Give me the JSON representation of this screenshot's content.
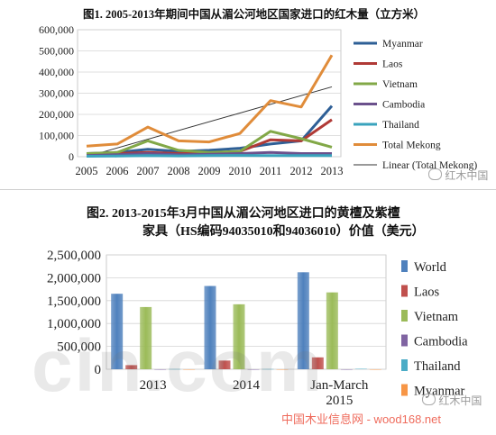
{
  "chart_data": [
    {
      "type": "line",
      "title": "图1. 2005-2013年期间中国从湄公河地区国家进口的红木量（立方米）",
      "categories": [
        "2005",
        "2006",
        "2007",
        "2008",
        "2009",
        "2010",
        "2011",
        "2012",
        "2013"
      ],
      "ylim": [
        0,
        600000
      ],
      "yticks": [
        "0",
        "100,000",
        "200,000",
        "300,000",
        "400,000",
        "500,000",
        "600,000"
      ],
      "grid": true,
      "legend_position": "right",
      "series": [
        {
          "name": "Myanmar",
          "color": "#2e5f96",
          "values": [
            15000,
            20000,
            35000,
            25000,
            30000,
            40000,
            60000,
            75000,
            240000
          ]
        },
        {
          "name": "Laos",
          "color": "#b03a36",
          "values": [
            10000,
            15000,
            20000,
            15000,
            15000,
            25000,
            80000,
            75000,
            175000
          ]
        },
        {
          "name": "Vietnam",
          "color": "#82a847",
          "values": [
            15000,
            20000,
            75000,
            30000,
            20000,
            25000,
            120000,
            85000,
            45000
          ]
        },
        {
          "name": "Cambodia",
          "color": "#6b518c",
          "values": [
            5000,
            10000,
            15000,
            10000,
            12000,
            15000,
            20000,
            15000,
            15000
          ]
        },
        {
          "name": "Thailand",
          "color": "#3aa3bd",
          "values": [
            2000,
            3000,
            5000,
            4000,
            5000,
            6000,
            5000,
            5000,
            5000
          ]
        },
        {
          "name": "Total Mekong",
          "color": "#e08c3a",
          "values": [
            50000,
            60000,
            140000,
            75000,
            70000,
            110000,
            265000,
            235000,
            480000
          ]
        }
      ],
      "trendline": {
        "name": "Linear (Total Mekong)",
        "color": "#333333",
        "start": 0,
        "end": 330000
      }
    },
    {
      "type": "bar",
      "title_line1": "图2. 2013-2015年3月中国从湄公河地区进口的黄檀及紫檀",
      "title_line2": "家具（HS编码94035010和94036010）价值（美元）",
      "categories": [
        "2013",
        "2014",
        "Jan-March 2015"
      ],
      "category_lines": [
        [
          "2013"
        ],
        [
          "2014"
        ],
        [
          "Jan-March",
          "2015"
        ]
      ],
      "ylim": [
        0,
        2500000
      ],
      "yticks": [
        "0",
        "500,000",
        "1,000,000",
        "1,500,000",
        "2,000,000",
        "2,500,000"
      ],
      "grid": true,
      "legend_position": "right",
      "series": [
        {
          "name": "World",
          "color": "#4f81bd",
          "values": [
            1650000,
            1820000,
            2120000
          ]
        },
        {
          "name": "Laos",
          "color": "#c0504d",
          "values": [
            90000,
            190000,
            260000
          ]
        },
        {
          "name": "Vietnam",
          "color": "#9bbb59",
          "values": [
            1360000,
            1420000,
            1680000
          ]
        },
        {
          "name": "Cambodia",
          "color": "#8064a2",
          "values": [
            0,
            0,
            0
          ]
        },
        {
          "name": "Thailand",
          "color": "#4bacc6",
          "values": [
            5000,
            5000,
            10000
          ]
        },
        {
          "name": "Myanmar",
          "color": "#f79646",
          "values": [
            0,
            0,
            0
          ]
        }
      ]
    }
  ],
  "watermarks": {
    "wechat_top": "红木中国",
    "wechat_bottom": "红木中国",
    "site_big": "cin.com",
    "site_small": "中国木业信息网 - wood168.net"
  }
}
